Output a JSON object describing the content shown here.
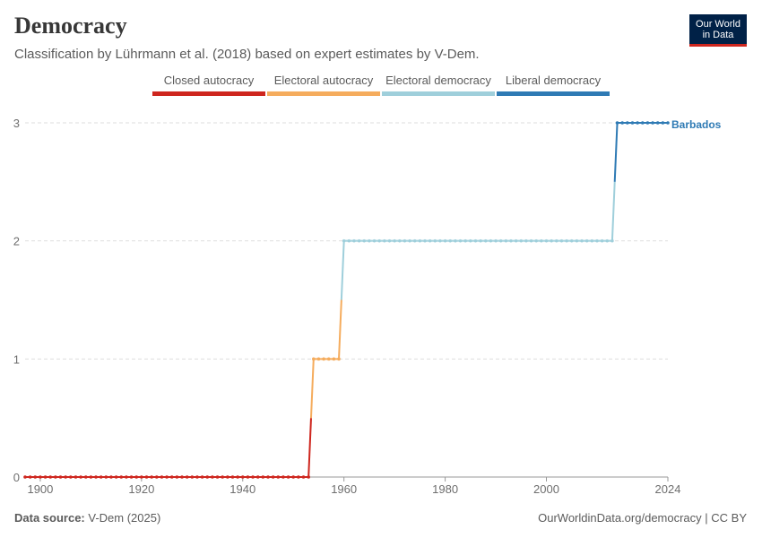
{
  "header": {
    "title": "Democracy",
    "subtitle": "Classification by Lührmann et al. (2018) based on expert estimates by V-Dem."
  },
  "logo": {
    "line1": "Our World",
    "line2": "in Data"
  },
  "legend": [
    {
      "label": "Closed autocracy",
      "color": "#ce261e"
    },
    {
      "label": "Electoral autocracy",
      "color": "#f5ac5d"
    },
    {
      "label": "Electoral democracy",
      "color": "#9fcfdb"
    },
    {
      "label": "Liberal democracy",
      "color": "#2e7ab4"
    }
  ],
  "footer": {
    "source_label": "Data source:",
    "source": "V-Dem (2025)",
    "link": "OurWorldinData.org/democracy | CC BY"
  },
  "chart_data": {
    "type": "line",
    "x_range": [
      1897,
      2024
    ],
    "y_range": [
      0,
      3
    ],
    "x_ticks": [
      {
        "value": 1900,
        "label": "1900"
      },
      {
        "value": 1920,
        "label": "1920"
      },
      {
        "value": 1940,
        "label": "1940"
      },
      {
        "value": 1960,
        "label": "1960"
      },
      {
        "value": 1980,
        "label": "1980"
      },
      {
        "value": 2000,
        "label": "2000"
      },
      {
        "value": 2024,
        "label": "2024"
      }
    ],
    "y_ticks": [
      0,
      1,
      2,
      3
    ],
    "grid": "horizontal-dashed",
    "series": [
      {
        "name": "Barbados",
        "step": true,
        "values": [
          {
            "from": 1897,
            "to": 1953,
            "y": 0
          },
          {
            "from": 1954,
            "to": 1959,
            "y": 1
          },
          {
            "from": 1960,
            "to": 2013,
            "y": 2
          },
          {
            "from": 2014,
            "to": 2024,
            "y": 3
          }
        ]
      }
    ]
  }
}
